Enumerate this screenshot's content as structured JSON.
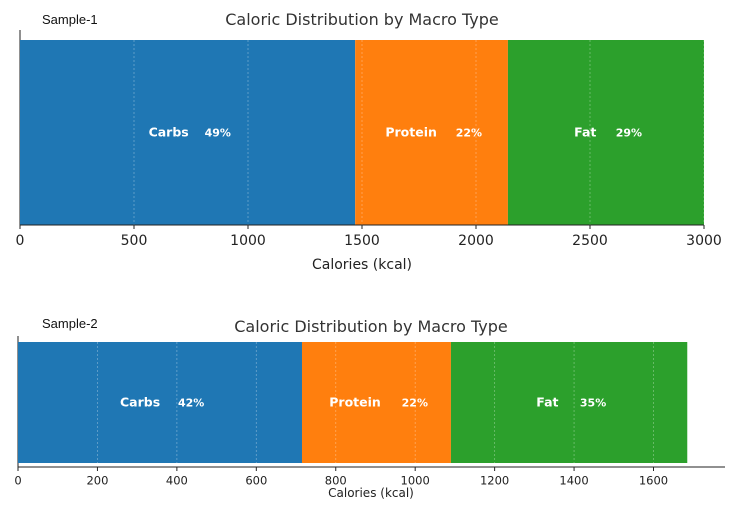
{
  "chart_data": [
    {
      "type": "bar",
      "orientation": "horizontal",
      "stacked": true,
      "sample_label": "Sample-1",
      "title": "Caloric Distribution by Macro Type",
      "xlabel": "Calories (kcal)",
      "ylabel": "",
      "xlim": [
        0,
        3000
      ],
      "xticks": [
        0,
        500,
        1000,
        1500,
        2000,
        2500,
        3000
      ],
      "grid": true,
      "segments": [
        {
          "name": "Carbs",
          "value": 1470,
          "percent_label": "49%",
          "color": "#1f77b4"
        },
        {
          "name": "Protein",
          "value": 670,
          "percent_label": "22%",
          "color": "#ff7f0e"
        },
        {
          "name": "Fat",
          "value": 860,
          "percent_label": "29%",
          "color": "#2ca02c"
        }
      ]
    },
    {
      "type": "bar",
      "orientation": "horizontal",
      "stacked": true,
      "sample_label": "Sample-2",
      "title": "Caloric Distribution by Macro Type",
      "xlabel": "Calories (kcal)",
      "ylabel": "",
      "xlim": [
        0,
        1780
      ],
      "xticks": [
        0,
        200,
        400,
        600,
        800,
        1000,
        1200,
        1400,
        1600
      ],
      "grid": true,
      "segments": [
        {
          "name": "Carbs",
          "value": 715,
          "percent_label": "42%",
          "color": "#1f77b4"
        },
        {
          "name": "Protein",
          "value": 375,
          "percent_label": "22%",
          "color": "#ff7f0e"
        },
        {
          "name": "Fat",
          "value": 595,
          "percent_label": "35%",
          "color": "#2ca02c"
        }
      ]
    }
  ]
}
